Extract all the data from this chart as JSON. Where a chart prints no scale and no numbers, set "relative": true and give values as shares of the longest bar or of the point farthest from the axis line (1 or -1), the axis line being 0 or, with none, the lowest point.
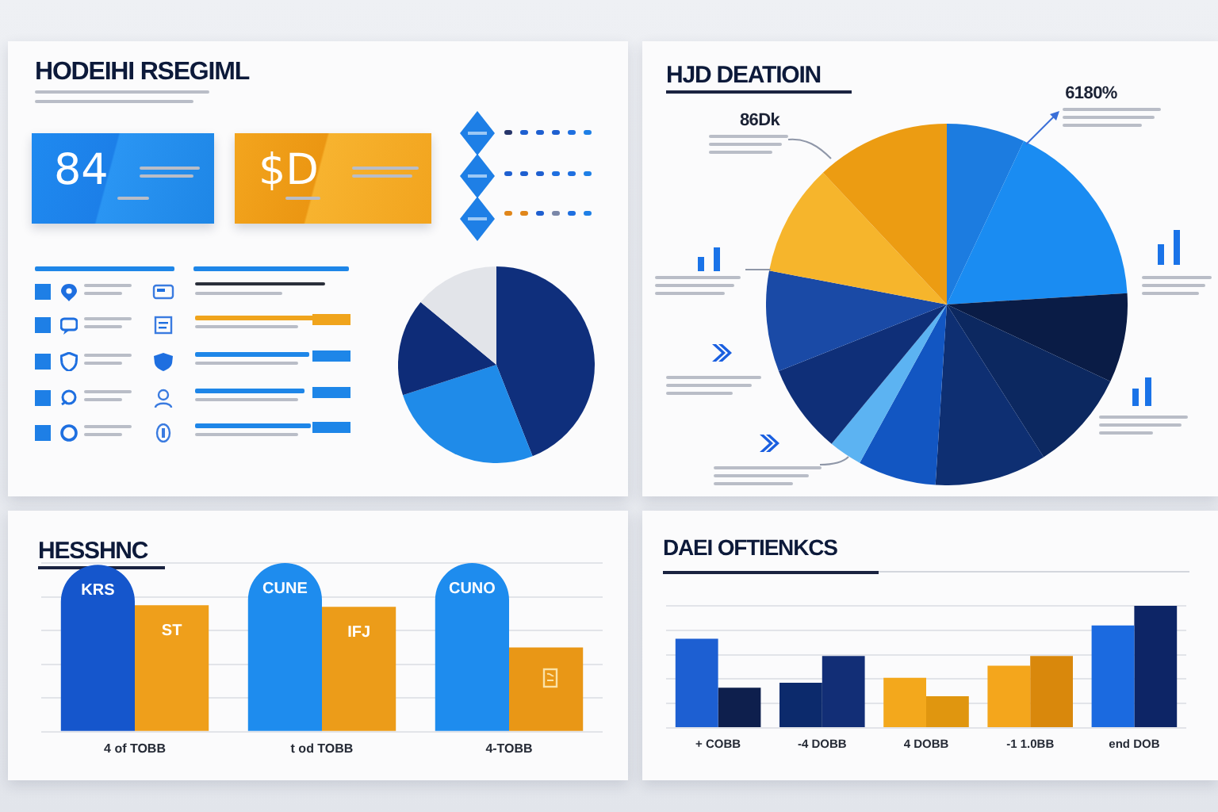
{
  "chart_data": [
    {
      "type": "other",
      "title": "HODEIHI RSEGIML",
      "annotations": [
        "84",
        "$D"
      ]
    },
    {
      "type": "pie",
      "categories": [
        null,
        null,
        null,
        null
      ],
      "values": [
        44,
        26,
        16,
        14
      ],
      "colors": [
        "#0f2f7c",
        "#1f8be9",
        "#0e2c78",
        "#e2e4e9"
      ]
    },
    {
      "type": "pie",
      "title": "HJD DEATIOIN",
      "categories": [
        null,
        null,
        null,
        null,
        null,
        null,
        null,
        null,
        null,
        null,
        null
      ],
      "values": [
        7,
        17,
        8,
        9,
        10,
        7,
        3,
        8,
        9,
        10,
        12
      ],
      "colors": [
        "#1c7ce0",
        "#1a8cf2",
        "#0a1c46",
        "#0c2860",
        "#0e2f72",
        "#1256c2",
        "#5cb3f2",
        "#0f2f78",
        "#1a4aa6",
        "#f6b52c",
        "#ec9c12"
      ],
      "annotations": [
        "86Dk",
        "6180%"
      ]
    },
    {
      "type": "bar",
      "title": "HESSHNC",
      "categories": [
        "4 of TOBB",
        "t od TOBB",
        "4-TOBB"
      ],
      "relative": true,
      "grid": "y",
      "series": [
        {
          "colors": [
            "#1556cc",
            "#1e8cee",
            "#1e8cee"
          ],
          "values": [
            0.99,
            1,
            1
          ]
        },
        {
          "colors": [
            "#ef9f1b",
            "#ec9c19",
            "#e99716"
          ],
          "values": [
            0.75,
            0.74,
            0.5
          ]
        }
      ],
      "annotations": [
        "KRS",
        "CUNE",
        "CUNO",
        "ST",
        "IFJ"
      ]
    },
    {
      "type": "bar",
      "title": "DAEI OFTIENKCS",
      "categories": [
        "+ COBB",
        "-4 DOBB",
        "4 DOBB",
        "-1 1.0BB",
        "end DOB"
      ],
      "relative": true,
      "grid": "y",
      "series": [
        {
          "colors": [
            "#1d5fd2",
            "#0c2a6c",
            "#f3a81c",
            "#f4a61c",
            "#1b6ae0"
          ],
          "values": [
            0.73,
            0.37,
            0.41,
            0.51,
            0.84
          ]
        },
        {
          "colors": [
            "#0e1f4d",
            "#122e76",
            "#e0960f",
            "#d9880c",
            "#0d2566"
          ],
          "values": [
            0.33,
            0.59,
            0.26,
            0.59,
            1
          ]
        }
      ]
    }
  ]
}
